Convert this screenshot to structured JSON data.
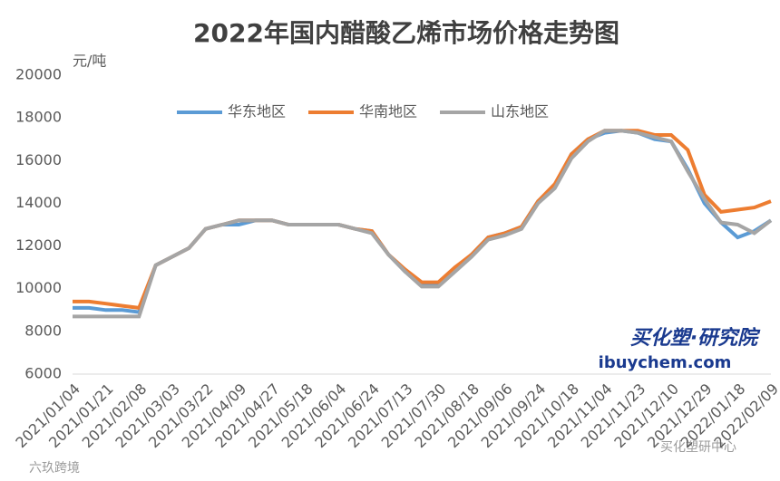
{
  "chart_data": {
    "type": "line",
    "title": "2022年国内醋酸乙烯市场价格走势图",
    "y_unit": "元/吨",
    "annotations": [
      "买化塑·研究院",
      "ibuychem.com",
      "六玖跨境",
      "买化塑研中心"
    ],
    "categories": [
      "2021/01/04",
      null,
      "2021/01/21",
      null,
      "2021/02/08",
      null,
      "2021/03/03",
      null,
      "2021/03/22",
      null,
      "2021/04/09",
      null,
      "2021/04/27",
      null,
      "2021/05/18",
      null,
      "2021/06/04",
      null,
      "2021/06/24",
      null,
      "2021/07/13",
      null,
      "2021/07/30",
      null,
      "2021/08/18",
      null,
      "2021/09/06",
      null,
      "2021/09/24",
      null,
      "2021/10/18",
      null,
      "2021/11/04",
      null,
      "2021/11/23",
      null,
      "2021/12/10",
      null,
      "2021/12/29",
      null,
      "2022/01/18",
      null,
      "2022/02/09"
    ],
    "series": [
      {
        "name": "华东地区",
        "color": "#5b9bd5",
        "values": [
          9100,
          9100,
          9000,
          9000,
          8900,
          11100,
          11500,
          11900,
          12800,
          13000,
          13000,
          13200,
          13200,
          13000,
          13000,
          13000,
          13000,
          12800,
          12700,
          11600,
          10800,
          10200,
          10200,
          10900,
          11600,
          12400,
          12600,
          12900,
          14100,
          14800,
          16300,
          17000,
          17300,
          17400,
          17300,
          17000,
          16900,
          15600,
          14000,
          13100,
          12400,
          12700,
          13200
        ]
      },
      {
        "name": "华南地区",
        "color": "#ed7d31",
        "values": [
          9400,
          9400,
          9300,
          9200,
          9100,
          11100,
          11500,
          11900,
          12800,
          13000,
          13200,
          13200,
          13200,
          13000,
          13000,
          13000,
          13000,
          12800,
          12700,
          11600,
          10900,
          10300,
          10300,
          11000,
          11600,
          12400,
          12600,
          12900,
          14100,
          14900,
          16300,
          17000,
          17400,
          17400,
          17400,
          17200,
          17200,
          16500,
          14400,
          13600,
          13700,
          13800,
          14100
        ]
      },
      {
        "name": "山东地区",
        "color": "#a5a5a5",
        "values": [
          8700,
          8700,
          8700,
          8700,
          8700,
          11100,
          11500,
          11900,
          12800,
          13000,
          13200,
          13200,
          13200,
          13000,
          13000,
          13000,
          13000,
          12800,
          12600,
          11600,
          10800,
          10100,
          10100,
          10800,
          11500,
          12300,
          12500,
          12800,
          14000,
          14700,
          16100,
          16900,
          17400,
          17400,
          17300,
          17100,
          16900,
          15500,
          14200,
          13100,
          13000,
          12600,
          13200
        ]
      }
    ],
    "ylim": [
      6000,
      20000
    ],
    "yticks": [
      6000,
      8000,
      10000,
      12000,
      14000,
      16000,
      18000,
      20000
    ],
    "grid": false
  }
}
